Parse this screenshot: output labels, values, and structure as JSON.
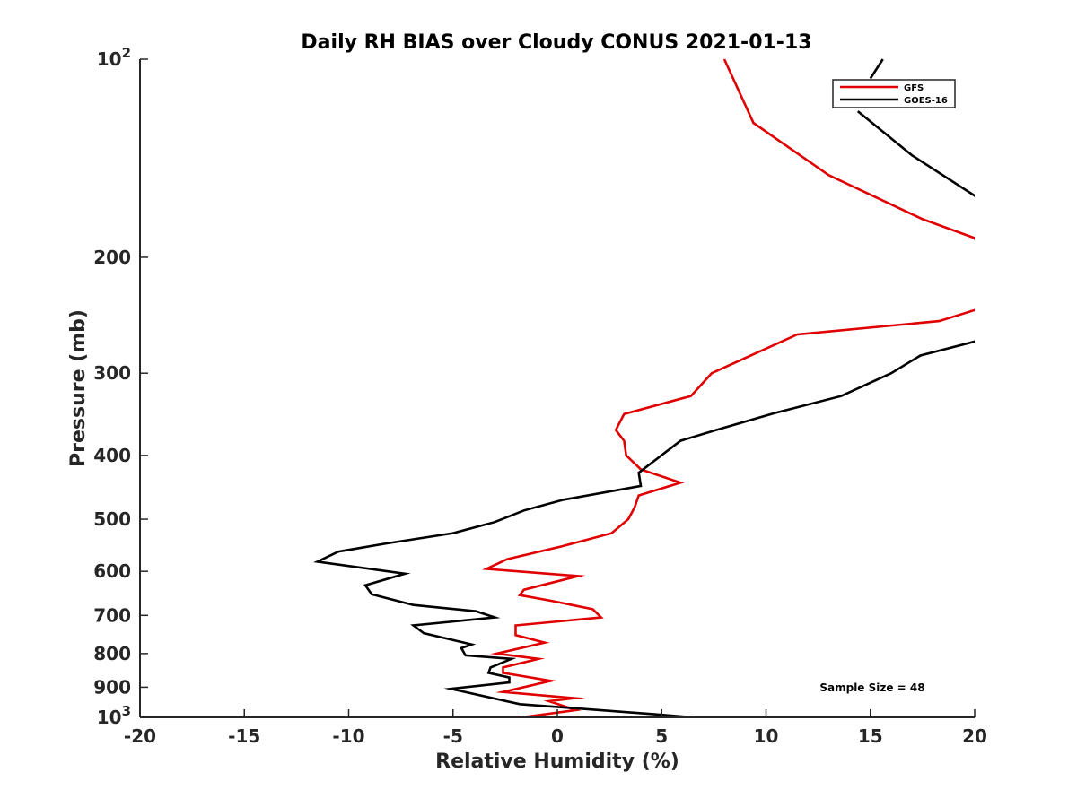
{
  "chart_data": {
    "type": "line",
    "title": "Daily RH BIAS over Cloudy CONUS 2021-01-13",
    "xlabel": "Relative Humidity (%)",
    "ylabel": "Pressure (mb)",
    "xlim": [
      -20,
      20
    ],
    "ylim": [
      1000,
      100
    ],
    "yscale": "log",
    "y_reversed": true,
    "x_ticks": [
      "-20",
      "-15",
      "-10",
      "-5",
      "0",
      "5",
      "10",
      "15",
      "20"
    ],
    "x_tick_values": [
      -20,
      -15,
      -10,
      -5,
      0,
      5,
      10,
      15,
      20
    ],
    "y_ticks": [
      {
        "value": 100,
        "base": "10",
        "exp": "2"
      },
      {
        "value": 200,
        "label": "200"
      },
      {
        "value": 300,
        "label": "300"
      },
      {
        "value": 400,
        "label": "400"
      },
      {
        "value": 500,
        "label": "500"
      },
      {
        "value": 600,
        "label": "600"
      },
      {
        "value": 700,
        "label": "700"
      },
      {
        "value": 800,
        "label": "800"
      },
      {
        "value": 900,
        "label": "900"
      },
      {
        "value": 1000,
        "base": "10",
        "exp": "3"
      }
    ],
    "grid": false,
    "legend_position": "top-right",
    "annotation": "Sample Size = 48",
    "series": [
      {
        "name": "GFS",
        "color": "#e00000",
        "points": [
          [
            8.0,
            100
          ],
          [
            9.4,
            125
          ],
          [
            13.0,
            150
          ],
          [
            17.5,
            175
          ],
          [
            20.0,
            187
          ],
          [
            20.1,
            190
          ],
          [
            null,
            null
          ],
          [
            20.1,
            240
          ],
          [
            18.3,
            250
          ],
          [
            11.5,
            262
          ],
          [
            7.4,
            300
          ],
          [
            6.4,
            325
          ],
          [
            3.2,
            346
          ],
          [
            2.8,
            366
          ],
          [
            3.2,
            380
          ],
          [
            3.3,
            400
          ],
          [
            4.0,
            420
          ],
          [
            5.9,
            440
          ],
          [
            3.9,
            460
          ],
          [
            3.7,
            480
          ],
          [
            3.4,
            500
          ],
          [
            2.6,
            525
          ],
          [
            0.2,
            550
          ],
          [
            -2.4,
            575
          ],
          [
            -3.4,
            595
          ],
          [
            1.0,
            610
          ],
          [
            -1.6,
            640
          ],
          [
            -1.8,
            652
          ],
          [
            -0.3,
            665
          ],
          [
            1.7,
            685
          ],
          [
            2.1,
            705
          ],
          [
            -2.0,
            725
          ],
          [
            -2.0,
            750
          ],
          [
            -0.6,
            770
          ],
          [
            -2.9,
            800
          ],
          [
            -0.9,
            815
          ],
          [
            -2.6,
            840
          ],
          [
            -2.6,
            856
          ],
          [
            -0.3,
            880
          ],
          [
            -2.6,
            915
          ],
          [
            0.8,
            935
          ],
          [
            -0.4,
            945
          ],
          [
            0.9,
            975
          ],
          [
            -1.7,
            1000
          ]
        ]
      },
      {
        "name": "GOES-16",
        "color": "#000000",
        "points": [
          [
            15.6,
            100
          ],
          [
            15.0,
            107
          ],
          [
            null,
            null
          ],
          [
            14.4,
            120
          ],
          [
            17.0,
            140
          ],
          [
            20.1,
            162
          ],
          [
            null,
            null
          ],
          [
            20.1,
            268
          ],
          [
            17.4,
            282
          ],
          [
            16.0,
            300
          ],
          [
            13.6,
            325
          ],
          [
            10.4,
            345
          ],
          [
            7.6,
            366
          ],
          [
            5.9,
            380
          ],
          [
            3.9,
            425
          ],
          [
            4.0,
            445
          ],
          [
            0.3,
            467
          ],
          [
            -1.6,
            485
          ],
          [
            -3.0,
            505
          ],
          [
            -5.0,
            525
          ],
          [
            -8.3,
            545
          ],
          [
            -10.5,
            560
          ],
          [
            -11.5,
            580
          ],
          [
            -7.3,
            605
          ],
          [
            -9.2,
            630
          ],
          [
            -8.9,
            650
          ],
          [
            -6.9,
            675
          ],
          [
            -3.9,
            690
          ],
          [
            -3.0,
            705
          ],
          [
            -6.9,
            725
          ],
          [
            -6.4,
            745
          ],
          [
            -4.1,
            775
          ],
          [
            -4.6,
            785
          ],
          [
            -4.4,
            805
          ],
          [
            -2.2,
            815
          ],
          [
            -3.2,
            840
          ],
          [
            -3.3,
            856
          ],
          [
            -2.3,
            870
          ],
          [
            -2.3,
            885
          ],
          [
            -5.1,
            905
          ],
          [
            -1.8,
            955
          ],
          [
            4.8,
            990
          ],
          [
            6.5,
            1000
          ]
        ]
      }
    ]
  }
}
